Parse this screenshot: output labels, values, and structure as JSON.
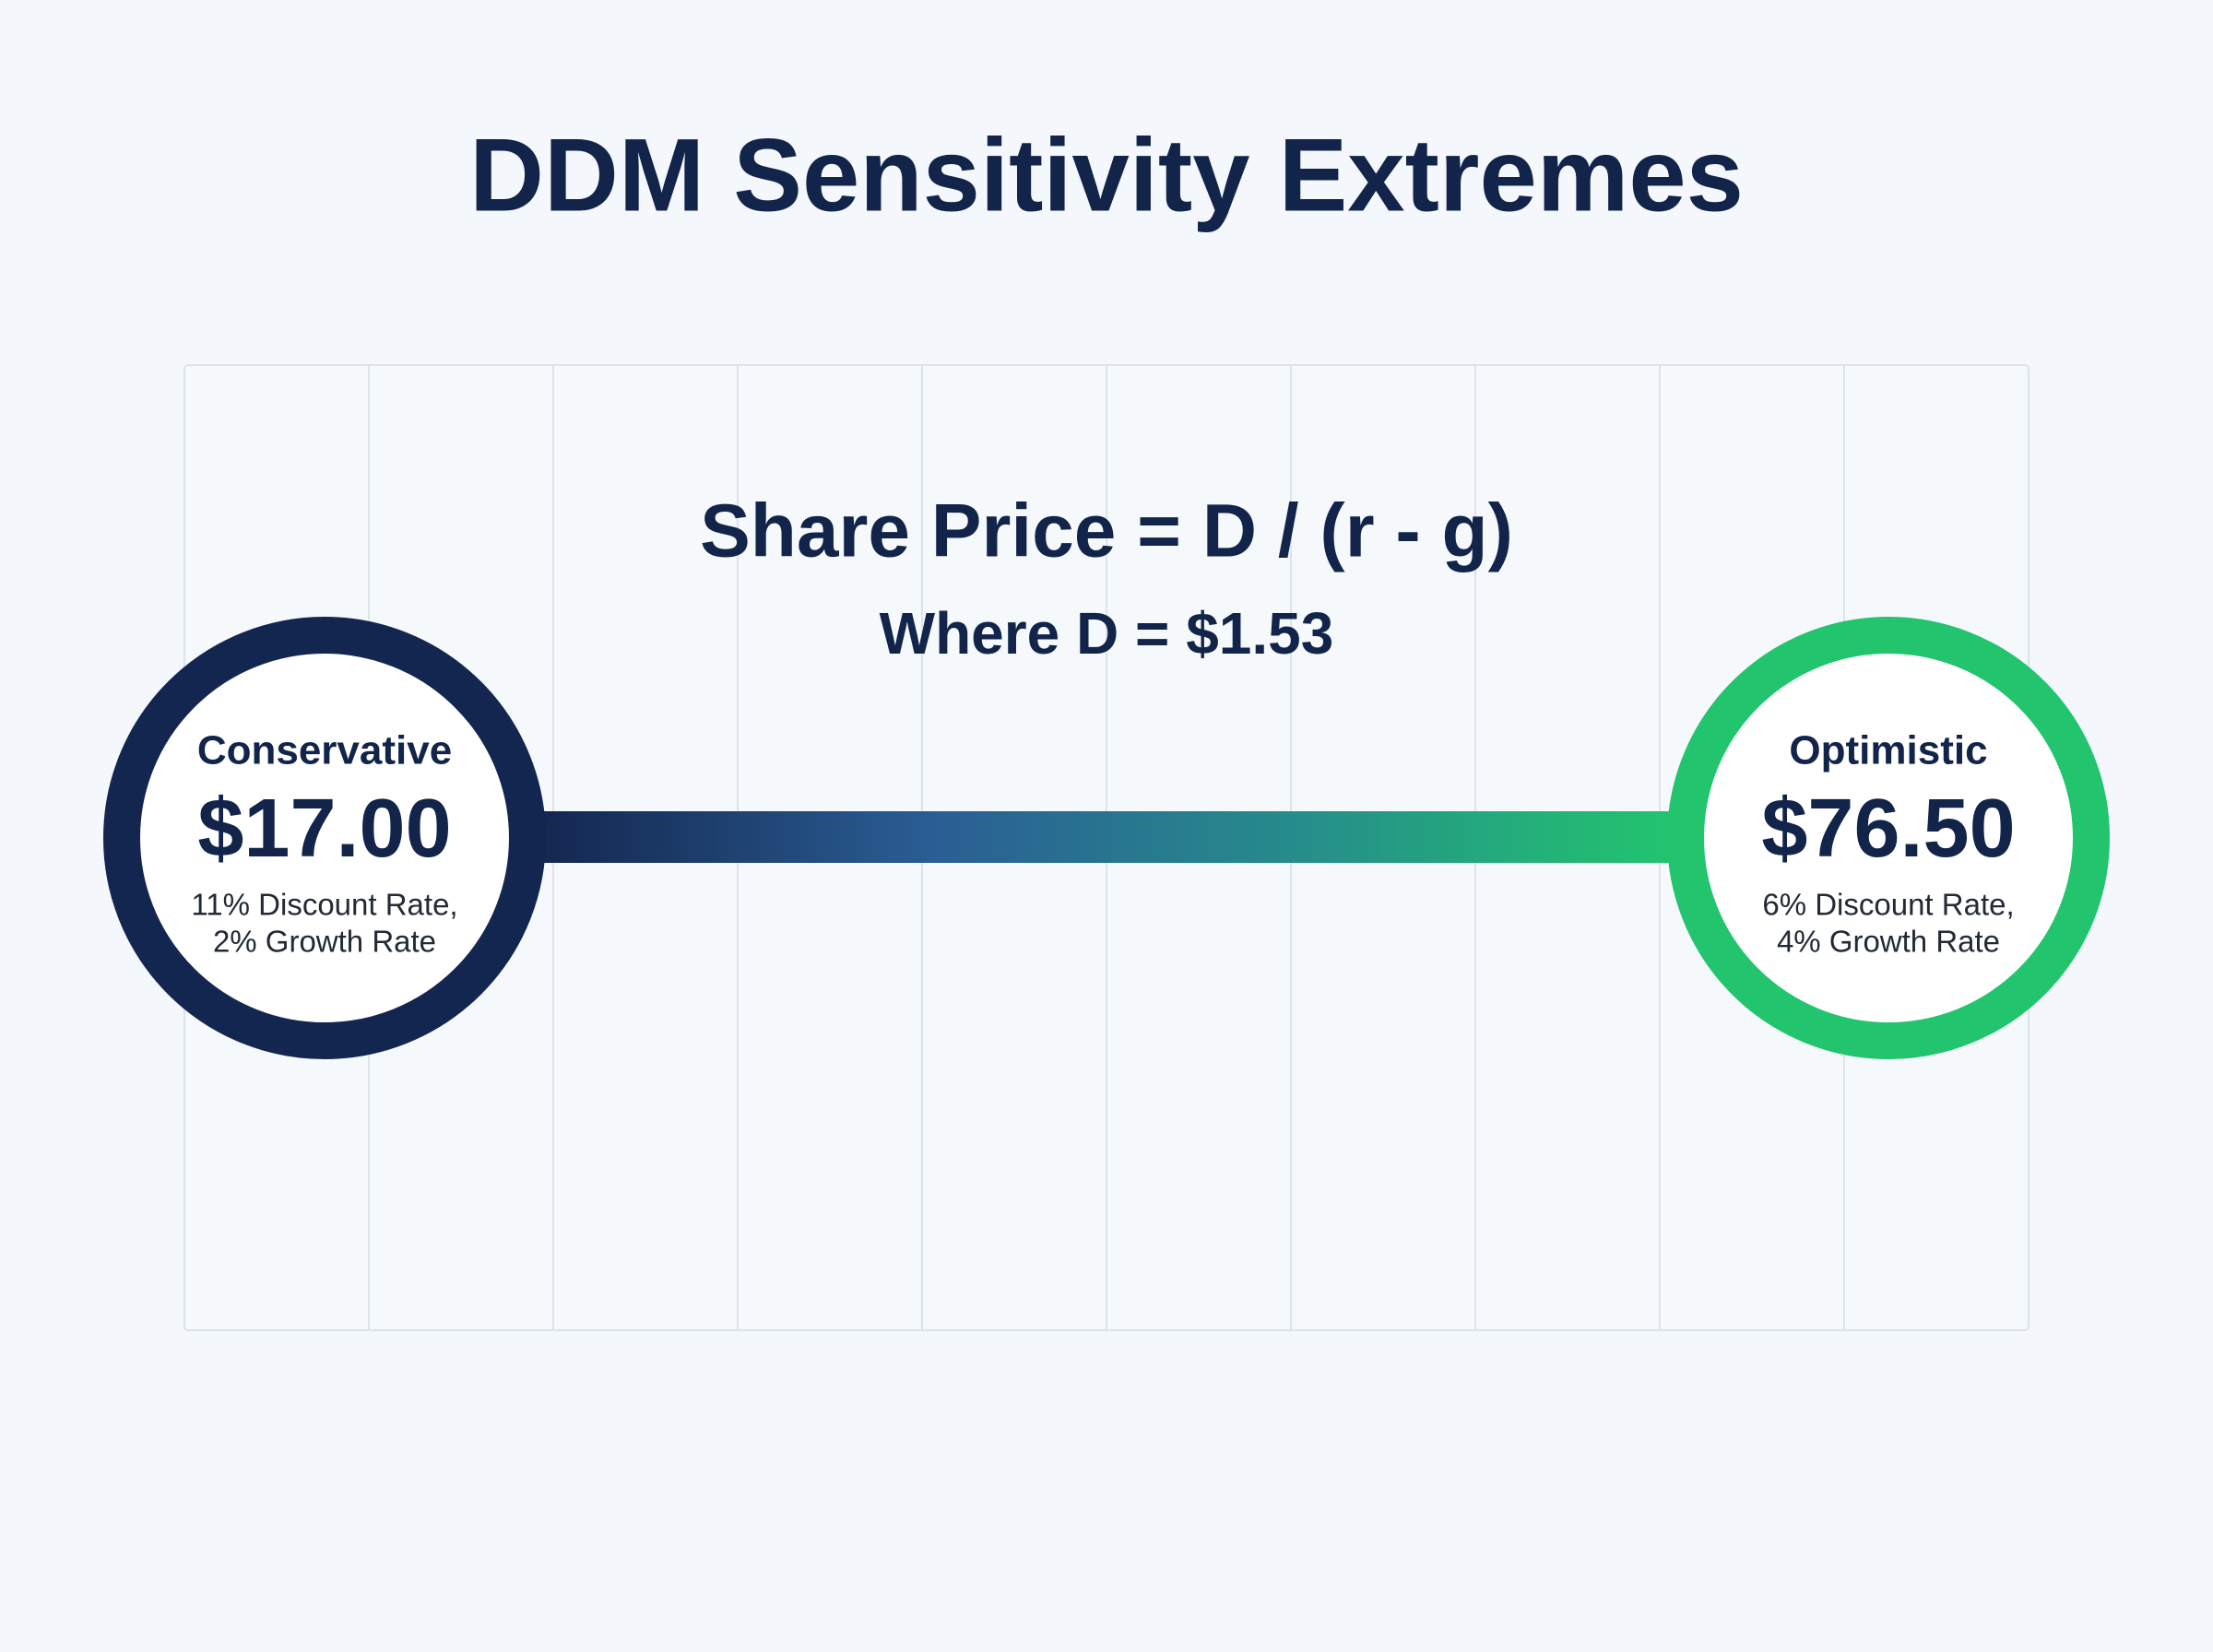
{
  "title": "DDM Sensitivity Extremes",
  "formula": {
    "equation": "Share Price = D / (r - g)",
    "note": "Where D = $1.53"
  },
  "scenarios": [
    {
      "label": "Conservative",
      "value": "$17.00",
      "description": [
        "11% Discount Rate,",
        "2% Growth Rate"
      ]
    },
    {
      "label": "Optimistic",
      "value": "$76.50",
      "description": [
        "6% Discount Rate,",
        "4% Growth Rate"
      ]
    }
  ]
}
